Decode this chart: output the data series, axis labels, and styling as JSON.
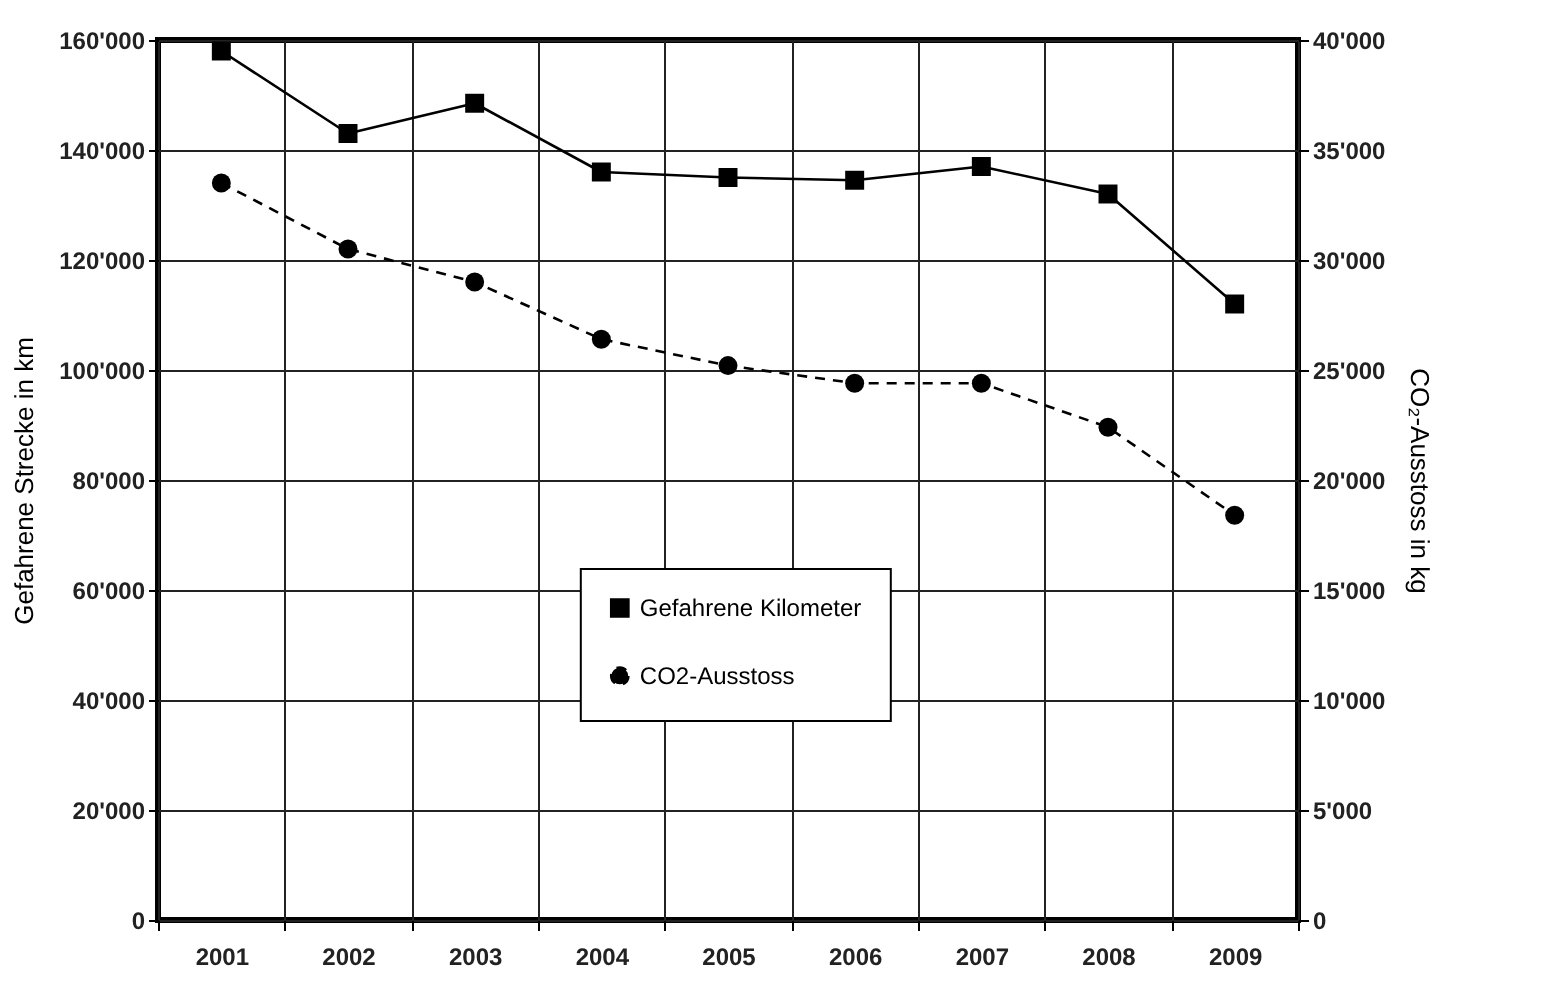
{
  "chart_data": {
    "type": "line",
    "categories": [
      "2001",
      "2002",
      "2003",
      "2004",
      "2005",
      "2006",
      "2007",
      "2008",
      "2009"
    ],
    "ylabel": "Gefahrene Strecke in km",
    "y2label": "CO₂-Ausstoss in kg",
    "ylim": [
      0,
      160000
    ],
    "yticks": [
      {
        "value": 0,
        "label": "0"
      },
      {
        "value": 20000,
        "label": "20'000"
      },
      {
        "value": 40000,
        "label": "40'000"
      },
      {
        "value": 60000,
        "label": "60'000"
      },
      {
        "value": 80000,
        "label": "80'000"
      },
      {
        "value": 100000,
        "label": "100'000"
      },
      {
        "value": 120000,
        "label": "120'000"
      },
      {
        "value": 140000,
        "label": "140'000"
      },
      {
        "value": 160000,
        "label": "160'000"
      }
    ],
    "y2lim": [
      0,
      40000
    ],
    "y2ticks": [
      {
        "value": 0,
        "label": "0"
      },
      {
        "value": 5000,
        "label": "5'000"
      },
      {
        "value": 10000,
        "label": "10'000"
      },
      {
        "value": 15000,
        "label": "15'000"
      },
      {
        "value": 20000,
        "label": "20'000"
      },
      {
        "value": 25000,
        "label": "25'000"
      },
      {
        "value": 30000,
        "label": "30'000"
      },
      {
        "value": 35000,
        "label": "35'000"
      },
      {
        "value": 40000,
        "label": "40'000"
      }
    ],
    "grid": true,
    "legend": "center",
    "series": [
      {
        "name": "Gefahrene Kilometer",
        "color": "#000000",
        "marker": "square",
        "line_style": "solid",
        "values": [
          158000,
          143000,
          148500,
          136000,
          135000,
          134500,
          137000,
          132000,
          112000
        ]
      },
      {
        "name": "CO2-Ausstoss",
        "color": "#000000",
        "marker": "circle",
        "line_style": "dashed",
        "axis": "y2",
        "values": [
          33500,
          30500,
          29000,
          26400,
          25200,
          24400,
          24400,
          22400,
          18400
        ]
      }
    ]
  }
}
